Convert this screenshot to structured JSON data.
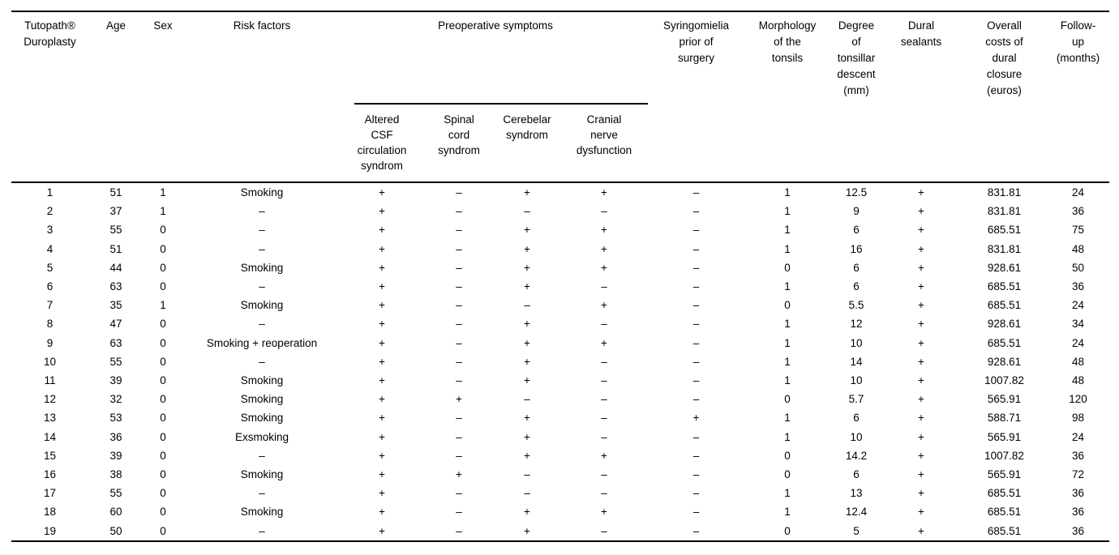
{
  "table": {
    "headers": {
      "patient": "Tutopath®\nDuroplasty",
      "age": "Age",
      "sex": "Sex",
      "risk_factors": "Risk factors",
      "preoperative_group": "Preoperative symptoms",
      "altered_csf": "Altered\nCSF\ncirculation\nsyndrom",
      "spinal_cord": "Spinal\ncord\nsyndrom",
      "cerebelar": "Cerebelar\nsyndrom",
      "cranial_nerve": "Cranial\nnerve\ndysfunction",
      "syringomielia": "Syringomielia\nprior of\nsurgery",
      "morphology": "Morphology\nof the\ntonsils",
      "descent": "Degree\nof\ntonsillar\ndescent\n(mm)",
      "dural_sealants": "Dural\nsealants",
      "costs": "Overall\ncosts of\ndural\nclosure\n(euros)",
      "follow_up": "Follow-\nup\n(months)"
    },
    "column_ids": [
      "patient",
      "age",
      "sex",
      "risk-factors",
      "altered-csf-syndrom",
      "spinal-cord-syndrom",
      "cerebelar-syndrom",
      "cranial-nerve-dysfunction",
      "syringomielia",
      "tonsil-morphology",
      "tonsillar-descent-mm",
      "dural-sealants",
      "cost-euros",
      "follow-up-months"
    ],
    "rows": [
      [
        "1",
        "51",
        "1",
        "Smoking",
        "+",
        "–",
        "+",
        "+",
        "–",
        "1",
        "12.5",
        "+",
        "831.81",
        "24"
      ],
      [
        "2",
        "37",
        "1",
        "–",
        "+",
        "–",
        "–",
        "–",
        "–",
        "1",
        "9",
        "+",
        "831.81",
        "36"
      ],
      [
        "3",
        "55",
        "0",
        "–",
        "+",
        "–",
        "+",
        "+",
        "–",
        "1",
        "6",
        "+",
        "685.51",
        "75"
      ],
      [
        "4",
        "51",
        "0",
        "–",
        "+",
        "–",
        "+",
        "+",
        "–",
        "1",
        "16",
        "+",
        "831.81",
        "48"
      ],
      [
        "5",
        "44",
        "0",
        "Smoking",
        "+",
        "–",
        "+",
        "+",
        "–",
        "0",
        "6",
        "+",
        "928.61",
        "50"
      ],
      [
        "6",
        "63",
        "0",
        "–",
        "+",
        "–",
        "+",
        "–",
        "–",
        "1",
        "6",
        "+",
        "685.51",
        "36"
      ],
      [
        "7",
        "35",
        "1",
        "Smoking",
        "+",
        "–",
        "–",
        "+",
        "–",
        "0",
        "5.5",
        "+",
        "685.51",
        "24"
      ],
      [
        "8",
        "47",
        "0",
        "–",
        "+",
        "–",
        "+",
        "–",
        "–",
        "1",
        "12",
        "+",
        "928.61",
        "34"
      ],
      [
        "9",
        "63",
        "0",
        "Smoking + reoperation",
        "+",
        "–",
        "+",
        "+",
        "–",
        "1",
        "10",
        "+",
        "685.51",
        "24"
      ],
      [
        "10",
        "55",
        "0",
        "–",
        "+",
        "–",
        "+",
        "–",
        "–",
        "1",
        "14",
        "+",
        "928.61",
        "48"
      ],
      [
        "11",
        "39",
        "0",
        "Smoking",
        "+",
        "–",
        "+",
        "–",
        "–",
        "1",
        "10",
        "+",
        "1007.82",
        "48"
      ],
      [
        "12",
        "32",
        "0",
        "Smoking",
        "+",
        "+",
        "–",
        "–",
        "–",
        "0",
        "5.7",
        "+",
        "565.91",
        "120"
      ],
      [
        "13",
        "53",
        "0",
        "Smoking",
        "+",
        "–",
        "+",
        "–",
        "+",
        "1",
        "6",
        "+",
        "588.71",
        "98"
      ],
      [
        "14",
        "36",
        "0",
        "Exsmoking",
        "+",
        "–",
        "+",
        "–",
        "–",
        "1",
        "10",
        "+",
        "565.91",
        "24"
      ],
      [
        "15",
        "39",
        "0",
        "–",
        "+",
        "–",
        "+",
        "+",
        "–",
        "0",
        "14.2",
        "+",
        "1007.82",
        "36"
      ],
      [
        "16",
        "38",
        "0",
        "Smoking",
        "+",
        "+",
        "–",
        "–",
        "–",
        "0",
        "6",
        "+",
        "565.91",
        "72"
      ],
      [
        "17",
        "55",
        "0",
        "–",
        "+",
        "–",
        "–",
        "–",
        "–",
        "1",
        "13",
        "+",
        "685.51",
        "36"
      ],
      [
        "18",
        "60",
        "0",
        "Smoking",
        "+",
        "–",
        "+",
        "+",
        "–",
        "1",
        "12.4",
        "+",
        "685.51",
        "36"
      ],
      [
        "19",
        "50",
        "0",
        "–",
        "+",
        "–",
        "+",
        "–",
        "–",
        "0",
        "5",
        "+",
        "685.51",
        "36"
      ]
    ]
  }
}
